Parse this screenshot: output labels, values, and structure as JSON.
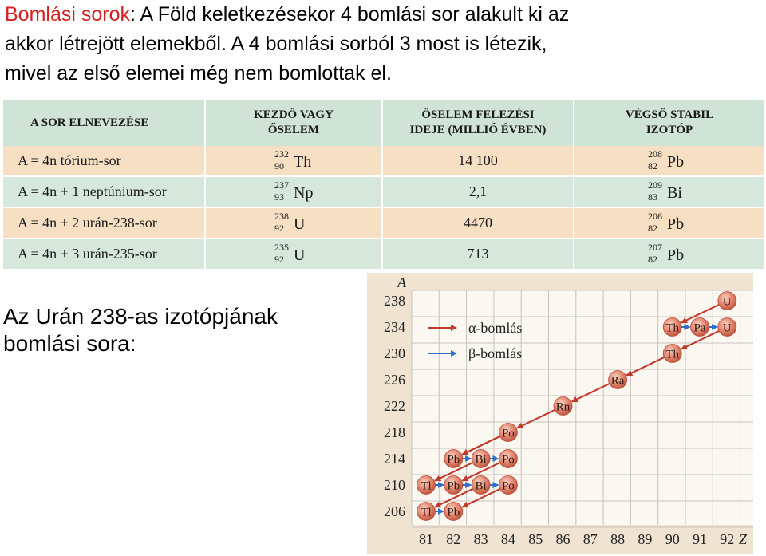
{
  "intro": {
    "lead": "Bomlási sorok",
    "line1_rest": ": A Föld keletkezésekor 4 bomlási sor alakult ki az",
    "line2": "akkor létrejött elemekből. A 4 bomlási sorból 3 most is létezik,",
    "line3": "mivel az első elemei még nem bomlottak el."
  },
  "table": {
    "headers": {
      "series_name": "A SOR ELNEVEZÉSE",
      "starting_line1": "KEZDŐ VAGY",
      "starting_line2": "ŐSELEM",
      "halflife_line1": "ŐSELEM FELEZÉSI",
      "halflife_line2": "IDEJE (MILLIÓ ÉVBEN)",
      "stable_line1": "VÉGSŐ STABIL",
      "stable_line2": "IZOTÓP"
    },
    "rows": [
      {
        "series": "A = 4n tórium-sor",
        "start_mass": "232",
        "start_z": "90",
        "start_sym": "Th",
        "halflife": "14 100",
        "end_mass": "208",
        "end_z": "82",
        "end_sym": "Pb"
      },
      {
        "series": "A = 4n + 1 neptúnium-sor",
        "start_mass": "237",
        "start_z": "93",
        "start_sym": "Np",
        "halflife": "2,1",
        "end_mass": "209",
        "end_z": "83",
        "end_sym": "Bi"
      },
      {
        "series": "A = 4n + 2 urán-238-sor",
        "start_mass": "238",
        "start_z": "92",
        "start_sym": "U",
        "halflife": "4470",
        "end_mass": "206",
        "end_z": "82",
        "end_sym": "Pb"
      },
      {
        "series": "A = 4n + 3 urán-235-sor",
        "start_mass": "235",
        "start_z": "92",
        "start_sym": "U",
        "halflife": "713",
        "end_mass": "207",
        "end_z": "82",
        "end_sym": "Pb"
      }
    ]
  },
  "caption": {
    "line1": "Az Urán 238-as izotópjának",
    "line2": "bomlási sora:"
  },
  "chart_data": {
    "type": "scatter",
    "xlabel": "Z",
    "ylabel": "A",
    "x_ticks": [
      81,
      82,
      83,
      84,
      85,
      86,
      87,
      88,
      89,
      90,
      91,
      92
    ],
    "y_ticks": [
      206,
      210,
      214,
      218,
      222,
      226,
      230,
      234,
      238
    ],
    "xlim": [
      81,
      92
    ],
    "ylim": [
      206,
      238
    ],
    "grid": true,
    "legend": [
      {
        "label": "α-bomlás",
        "color": "#c0392b"
      },
      {
        "label": "β-bomlás",
        "color": "#2f6fc9"
      }
    ],
    "nuclides": [
      {
        "sym": "U",
        "z": 92,
        "a": 238
      },
      {
        "sym": "Th",
        "z": 90,
        "a": 234
      },
      {
        "sym": "Pa",
        "z": 91,
        "a": 234
      },
      {
        "sym": "U",
        "z": 92,
        "a": 234
      },
      {
        "sym": "Th",
        "z": 90,
        "a": 230
      },
      {
        "sym": "Ra",
        "z": 88,
        "a": 226
      },
      {
        "sym": "Rn",
        "z": 86,
        "a": 222
      },
      {
        "sym": "Po",
        "z": 84,
        "a": 218
      },
      {
        "sym": "Pb",
        "z": 82,
        "a": 214
      },
      {
        "sym": "Bi",
        "z": 83,
        "a": 214
      },
      {
        "sym": "Po",
        "z": 84,
        "a": 214
      },
      {
        "sym": "Tl",
        "z": 81,
        "a": 210
      },
      {
        "sym": "Pb",
        "z": 82,
        "a": 210
      },
      {
        "sym": "Bi",
        "z": 83,
        "a": 210
      },
      {
        "sym": "Po",
        "z": 84,
        "a": 210
      },
      {
        "sym": "Tl",
        "z": 81,
        "a": 206
      },
      {
        "sym": "Pb",
        "z": 82,
        "a": 206
      }
    ],
    "decays": [
      {
        "type": "alpha",
        "from": [
          92,
          238
        ],
        "to": [
          90,
          234
        ]
      },
      {
        "type": "beta",
        "from": [
          90,
          234
        ],
        "to": [
          91,
          234
        ]
      },
      {
        "type": "beta",
        "from": [
          91,
          234
        ],
        "to": [
          92,
          234
        ]
      },
      {
        "type": "alpha",
        "from": [
          92,
          234
        ],
        "to": [
          90,
          230
        ]
      },
      {
        "type": "alpha",
        "from": [
          90,
          230
        ],
        "to": [
          88,
          226
        ]
      },
      {
        "type": "alpha",
        "from": [
          88,
          226
        ],
        "to": [
          86,
          222
        ]
      },
      {
        "type": "alpha",
        "from": [
          86,
          222
        ],
        "to": [
          84,
          218
        ]
      },
      {
        "type": "alpha",
        "from": [
          84,
          218
        ],
        "to": [
          82,
          214
        ]
      },
      {
        "type": "beta",
        "from": [
          82,
          214
        ],
        "to": [
          83,
          214
        ]
      },
      {
        "type": "beta",
        "from": [
          83,
          214
        ],
        "to": [
          84,
          214
        ]
      },
      {
        "type": "alpha",
        "from": [
          84,
          214
        ],
        "to": [
          82,
          210
        ]
      },
      {
        "type": "alpha",
        "from": [
          84,
          218
        ],
        "to": [
          82,
          214
        ]
      },
      {
        "type": "alpha",
        "from": [
          83,
          214
        ],
        "to": [
          81,
          210
        ]
      },
      {
        "type": "beta",
        "from": [
          81,
          210
        ],
        "to": [
          82,
          210
        ]
      },
      {
        "type": "beta",
        "from": [
          82,
          210
        ],
        "to": [
          83,
          210
        ]
      },
      {
        "type": "beta",
        "from": [
          83,
          210
        ],
        "to": [
          84,
          210
        ]
      },
      {
        "type": "alpha",
        "from": [
          83,
          210
        ],
        "to": [
          81,
          206
        ]
      },
      {
        "type": "alpha",
        "from": [
          84,
          210
        ],
        "to": [
          82,
          206
        ]
      },
      {
        "type": "beta",
        "from": [
          81,
          206
        ],
        "to": [
          82,
          206
        ]
      }
    ]
  }
}
